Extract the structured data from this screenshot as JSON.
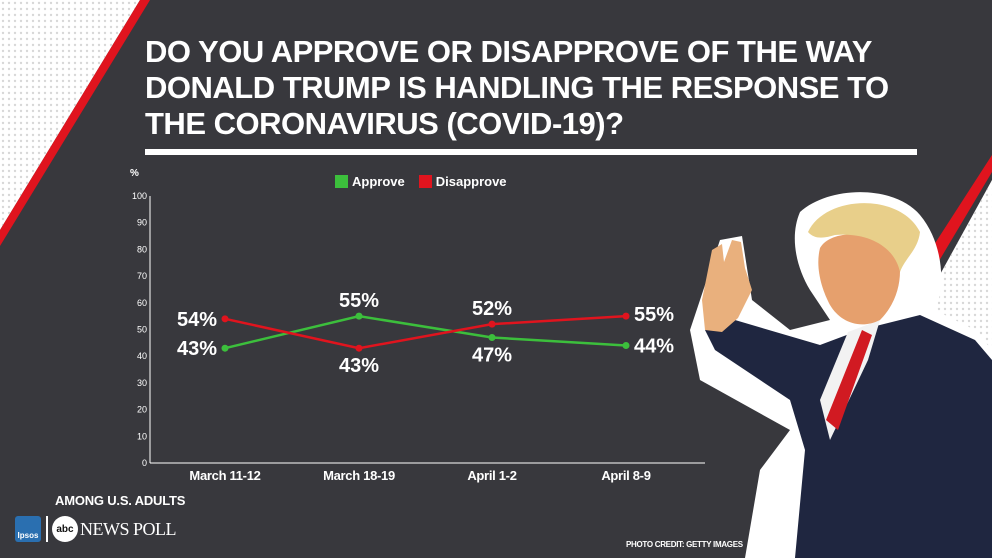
{
  "title": "DO YOU APPROVE OR DISAPPROVE OF THE WAY DONALD TRUMP IS HANDLING THE RESPONSE TO THE CORONAVIRUS (COVID-19)?",
  "subgroup_note": "AMONG U.S. ADULTS",
  "branding": {
    "ipsos_label": "Ipsos",
    "abc_label": "abc",
    "poll_name": "NEWS POLL"
  },
  "photo_credit": "PHOTO CREDIT: GETTY IMAGES",
  "colors": {
    "background": "#38383d",
    "approve": "#3cbf3c",
    "disapprove": "#e0141e",
    "accent_stripe": "#e0141e"
  },
  "chart_data": {
    "type": "line",
    "ylabel": "%",
    "xlabel": "",
    "ylim": [
      0,
      100
    ],
    "yticks": [
      0,
      10,
      20,
      30,
      40,
      50,
      60,
      70,
      80,
      90,
      100
    ],
    "grid": false,
    "legend_position": "top-center",
    "categories": [
      "March 11-12",
      "March 18-19",
      "April 1-2",
      "April 8-9"
    ],
    "series": [
      {
        "name": "Approve",
        "color": "#3cbf3c",
        "values": [
          43,
          55,
          47,
          44
        ],
        "labels": [
          "43%",
          "55%",
          "47%",
          "44%"
        ]
      },
      {
        "name": "Disapprove",
        "color": "#e0141e",
        "values": [
          54,
          43,
          52,
          55
        ],
        "labels": [
          "54%",
          "43%",
          "52%",
          "55%"
        ]
      }
    ]
  }
}
